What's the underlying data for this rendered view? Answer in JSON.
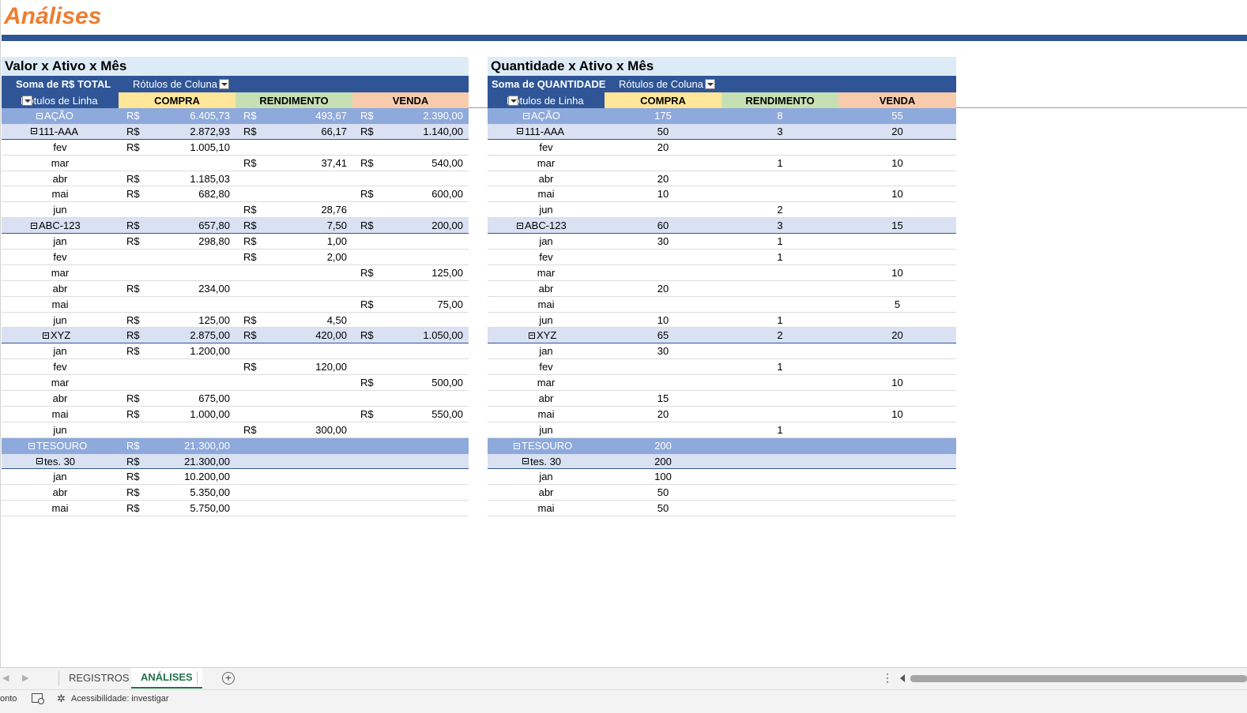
{
  "title": "Análises",
  "currency": "R$",
  "pivots": [
    {
      "id": "valor",
      "title": "Valor x Ativo x Mês",
      "sum_label": "Soma de R$ TOTAL",
      "col_labels_label": "Rótulos de Coluna",
      "row_labels_label": "Rótulos de Linha",
      "columns": [
        "COMPRA",
        "RENDIMENTO",
        "VENDA"
      ],
      "show_currency": true,
      "rows": [
        {
          "level": 1,
          "label": "AÇÃO",
          "values": [
            "6.405,73",
            "493,67",
            "2.390,00"
          ]
        },
        {
          "level": 2,
          "label": "111-AAA",
          "values": [
            "2.872,93",
            "66,17",
            "1.140,00"
          ]
        },
        {
          "level": 3,
          "label": "fev",
          "values": [
            "1.005,10",
            "",
            ""
          ]
        },
        {
          "level": 3,
          "label": "mar",
          "values": [
            "",
            "37,41",
            "540,00"
          ]
        },
        {
          "level": 3,
          "label": "abr",
          "values": [
            "1.185,03",
            "",
            ""
          ]
        },
        {
          "level": 3,
          "label": "mai",
          "values": [
            "682,80",
            "",
            "600,00"
          ]
        },
        {
          "level": 3,
          "label": "jun",
          "values": [
            "",
            "28,76",
            ""
          ]
        },
        {
          "level": 2,
          "label": "ABC-123",
          "values": [
            "657,80",
            "7,50",
            "200,00"
          ]
        },
        {
          "level": 3,
          "label": "jan",
          "values": [
            "298,80",
            "1,00",
            ""
          ]
        },
        {
          "level": 3,
          "label": "fev",
          "values": [
            "",
            "2,00",
            ""
          ]
        },
        {
          "level": 3,
          "label": "mar",
          "values": [
            "",
            "",
            "125,00"
          ]
        },
        {
          "level": 3,
          "label": "abr",
          "values": [
            "234,00",
            "",
            ""
          ]
        },
        {
          "level": 3,
          "label": "mai",
          "values": [
            "",
            "",
            "75,00"
          ]
        },
        {
          "level": 3,
          "label": "jun",
          "values": [
            "125,00",
            "4,50",
            ""
          ]
        },
        {
          "level": 2,
          "label": "XYZ",
          "values": [
            "2.875,00",
            "420,00",
            "1.050,00"
          ]
        },
        {
          "level": 3,
          "label": "jan",
          "values": [
            "1.200,00",
            "",
            ""
          ]
        },
        {
          "level": 3,
          "label": "fev",
          "values": [
            "",
            "120,00",
            ""
          ]
        },
        {
          "level": 3,
          "label": "mar",
          "values": [
            "",
            "",
            "500,00"
          ]
        },
        {
          "level": 3,
          "label": "abr",
          "values": [
            "675,00",
            "",
            ""
          ]
        },
        {
          "level": 3,
          "label": "mai",
          "values": [
            "1.000,00",
            "",
            "550,00"
          ]
        },
        {
          "level": 3,
          "label": "jun",
          "values": [
            "",
            "300,00",
            ""
          ]
        },
        {
          "level": 1,
          "label": "TESOURO",
          "values": [
            "21.300,00",
            "",
            ""
          ]
        },
        {
          "level": 2,
          "label": "tes. 30",
          "values": [
            "21.300,00",
            "",
            ""
          ]
        },
        {
          "level": 3,
          "label": "jan",
          "values": [
            "10.200,00",
            "",
            ""
          ]
        },
        {
          "level": 3,
          "label": "abr",
          "values": [
            "5.350,00",
            "",
            ""
          ]
        },
        {
          "level": 3,
          "label": "mai",
          "values": [
            "5.750,00",
            "",
            ""
          ]
        }
      ]
    },
    {
      "id": "quantidade",
      "title": "Quantidade x Ativo x Mês",
      "sum_label": "Soma de QUANTIDADE",
      "col_labels_label": "Rótulos de Coluna",
      "row_labels_label": "Rótulos de Linha",
      "columns": [
        "COMPRA",
        "RENDIMENTO",
        "VENDA"
      ],
      "show_currency": false,
      "rows": [
        {
          "level": 1,
          "label": "AÇÃO",
          "values": [
            "175",
            "8",
            "55"
          ]
        },
        {
          "level": 2,
          "label": "111-AAA",
          "values": [
            "50",
            "3",
            "20"
          ]
        },
        {
          "level": 3,
          "label": "fev",
          "values": [
            "20",
            "",
            ""
          ]
        },
        {
          "level": 3,
          "label": "mar",
          "values": [
            "",
            "1",
            "10"
          ]
        },
        {
          "level": 3,
          "label": "abr",
          "values": [
            "20",
            "",
            ""
          ]
        },
        {
          "level": 3,
          "label": "mai",
          "values": [
            "10",
            "",
            "10"
          ]
        },
        {
          "level": 3,
          "label": "jun",
          "values": [
            "",
            "2",
            ""
          ]
        },
        {
          "level": 2,
          "label": "ABC-123",
          "values": [
            "60",
            "3",
            "15"
          ]
        },
        {
          "level": 3,
          "label": "jan",
          "values": [
            "30",
            "1",
            ""
          ]
        },
        {
          "level": 3,
          "label": "fev",
          "values": [
            "",
            "1",
            ""
          ]
        },
        {
          "level": 3,
          "label": "mar",
          "values": [
            "",
            "",
            "10"
          ]
        },
        {
          "level": 3,
          "label": "abr",
          "values": [
            "20",
            "",
            ""
          ]
        },
        {
          "level": 3,
          "label": "mai",
          "values": [
            "",
            "",
            "5"
          ]
        },
        {
          "level": 3,
          "label": "jun",
          "values": [
            "10",
            "1",
            ""
          ]
        },
        {
          "level": 2,
          "label": "XYZ",
          "values": [
            "65",
            "2",
            "20"
          ]
        },
        {
          "level": 3,
          "label": "jan",
          "values": [
            "30",
            "",
            ""
          ]
        },
        {
          "level": 3,
          "label": "fev",
          "values": [
            "",
            "1",
            ""
          ]
        },
        {
          "level": 3,
          "label": "mar",
          "values": [
            "",
            "",
            "10"
          ]
        },
        {
          "level": 3,
          "label": "abr",
          "values": [
            "15",
            "",
            ""
          ]
        },
        {
          "level": 3,
          "label": "mai",
          "values": [
            "20",
            "",
            "10"
          ]
        },
        {
          "level": 3,
          "label": "jun",
          "values": [
            "",
            "1",
            ""
          ]
        },
        {
          "level": 1,
          "label": "TESOURO",
          "values": [
            "200",
            "",
            ""
          ]
        },
        {
          "level": 2,
          "label": "tes. 30",
          "values": [
            "200",
            "",
            ""
          ]
        },
        {
          "level": 3,
          "label": "jan",
          "values": [
            "100",
            "",
            ""
          ]
        },
        {
          "level": 3,
          "label": "abr",
          "values": [
            "50",
            "",
            ""
          ]
        },
        {
          "level": 3,
          "label": "mai",
          "values": [
            "50",
            "",
            ""
          ]
        }
      ]
    }
  ],
  "sheet_tabs": [
    {
      "label": "REGISTROS",
      "active": false
    },
    {
      "label": "ANÁLISES",
      "active": true
    }
  ],
  "status": {
    "mode": "onto",
    "accessibility": "Acessibilidade: investigar"
  },
  "colors": {
    "title": "#ED7D31",
    "header_dark": "#2F5597",
    "level1": "#8EA9DB",
    "level2": "#D9E1F2",
    "compra": "#FFE699",
    "rendimento": "#C6E0B4",
    "venda": "#F8CBAD"
  },
  "icons": [
    "collapse-minus-icon",
    "dropdown-filter-icon",
    "add-sheet-icon",
    "macro-record-icon",
    "accessibility-icon"
  ]
}
